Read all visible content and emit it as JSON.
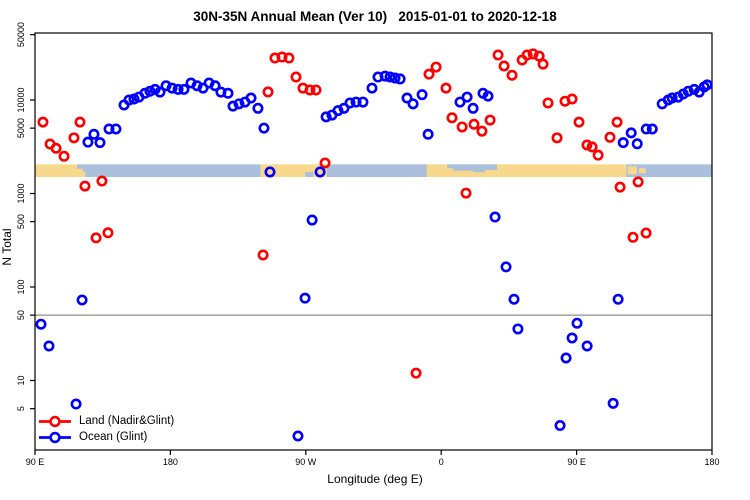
{
  "title": "30N-35N Annual Mean (Ver 10)   2015-01-01 to 2020-12-18",
  "chart_data": {
    "type": "scatter",
    "title": "30N-35N Annual Mean (Ver 10)   2015-01-01 to 2020-12-18",
    "xlabel": "Longitude (deg E)",
    "ylabel": "N Total",
    "x_axis": {
      "range": [
        90,
        540
      ],
      "ticks": [
        90,
        180,
        270,
        360,
        450,
        540
      ],
      "tick_labels": [
        "90 E",
        "180",
        "90 W",
        "0",
        "90 E",
        "180"
      ]
    },
    "y_axis": {
      "scale": "log",
      "range": [
        1.8,
        48000
      ],
      "ticks": [
        50000,
        10000,
        5000,
        1000,
        500,
        100,
        50,
        10,
        5
      ],
      "tick_labels": [
        "50000",
        "10000",
        "5000",
        "1000",
        "500",
        "100",
        "50",
        "10",
        "5"
      ]
    },
    "gridline_y": 50,
    "gridline_color": "#999999",
    "map_band": {
      "n_range": [
        1500,
        2050
      ],
      "ocean_color": "#a9bfdc",
      "land_color": "#f8d88c",
      "segments": [
        {
          "surface": "land",
          "lon": [
            90,
            121.5
          ]
        },
        {
          "surface": "ocean",
          "lon": [
            121.5,
            240
          ]
        },
        {
          "surface": "land",
          "lon": [
            240,
            284
          ]
        },
        {
          "surface": "ocean",
          "lon": [
            284,
            350.5
          ]
        },
        {
          "surface": "land",
          "lon": [
            350.5,
            483
          ]
        },
        {
          "surface": "ocean",
          "lon": [
            483,
            540
          ]
        }
      ],
      "overlays": [
        {
          "surface": "ocean",
          "lon": [
            118,
            121.5
          ],
          "frac": [
            0,
            0.35
          ]
        },
        {
          "surface": "land",
          "lon": [
            121.5,
            123.5
          ],
          "frac": [
            0.55,
            1
          ]
        },
        {
          "surface": "ocean",
          "lon": [
            269.5,
            275
          ],
          "frac": [
            0.6,
            1
          ]
        },
        {
          "surface": "ocean",
          "lon": [
            364,
            368
          ],
          "frac": [
            0,
            0.3
          ]
        },
        {
          "surface": "ocean",
          "lon": [
            368,
            381
          ],
          "frac": [
            0,
            0.5
          ]
        },
        {
          "surface": "ocean",
          "lon": [
            381,
            389
          ],
          "frac": [
            0,
            0.62
          ]
        },
        {
          "surface": "ocean",
          "lon": [
            389,
            397
          ],
          "frac": [
            0,
            0.45
          ]
        },
        {
          "surface": "land",
          "lon": [
            484,
            490
          ],
          "frac": [
            0.15,
            0.8
          ]
        },
        {
          "surface": "land",
          "lon": [
            491.5,
            496
          ],
          "frac": [
            0.3,
            0.7
          ]
        }
      ]
    },
    "series": [
      {
        "name": "Land (Nadir&Glint)",
        "color": "#ff0000",
        "points": [
          [
            95.3,
            5800
          ],
          [
            100,
            3380
          ],
          [
            104,
            3050
          ],
          [
            109.3,
            2500
          ],
          [
            115.9,
            3940
          ],
          [
            119.9,
            5800
          ],
          [
            123.2,
            1200
          ],
          [
            130.6,
            335
          ],
          [
            134.5,
            1360
          ],
          [
            138.5,
            380
          ],
          [
            241.6,
            220
          ],
          [
            244.9,
            12200
          ],
          [
            249.5,
            28100
          ],
          [
            254.2,
            28800
          ],
          [
            258.8,
            28100
          ],
          [
            263.5,
            17600
          ],
          [
            268.1,
            13400
          ],
          [
            272.8,
            12800
          ],
          [
            276.8,
            12800
          ],
          [
            282.8,
            2120
          ],
          [
            343.3,
            12
          ],
          [
            351.9,
            18900
          ],
          [
            356.6,
            22500
          ],
          [
            363.2,
            13400
          ],
          [
            367.2,
            6450
          ],
          [
            373.9,
            5150
          ],
          [
            376.5,
            1010
          ],
          [
            381.8,
            5500
          ],
          [
            387.1,
            4640
          ],
          [
            392.5,
            6100
          ],
          [
            397.8,
            30300
          ],
          [
            401.8,
            23100
          ],
          [
            407.1,
            18400
          ],
          [
            413.8,
            26800
          ],
          [
            417.1,
            30300
          ],
          [
            421.1,
            31100
          ],
          [
            425.1,
            29500
          ],
          [
            427.7,
            24200
          ],
          [
            431,
            9300
          ],
          [
            437,
            3940
          ],
          [
            442.3,
            9700
          ],
          [
            447,
            10250
          ],
          [
            451.6,
            5800
          ],
          [
            456.9,
            3300
          ],
          [
            460.3,
            3150
          ],
          [
            464.3,
            2570
          ],
          [
            472.2,
            3990
          ],
          [
            476.9,
            5800
          ],
          [
            478.9,
            1170
          ],
          [
            487.5,
            340
          ],
          [
            490.9,
            1330
          ],
          [
            496.2,
            378
          ]
        ]
      },
      {
        "name": "Ocean (Glint)",
        "color": "#0000ff",
        "points": [
          [
            94,
            40
          ],
          [
            99.3,
            23.4
          ],
          [
            117.3,
            5.6
          ],
          [
            121.3,
            72.6
          ],
          [
            125.2,
            3540
          ],
          [
            129.2,
            4300
          ],
          [
            133.2,
            3500
          ],
          [
            139.2,
            4900
          ],
          [
            143.8,
            4900
          ],
          [
            149.2,
            8850
          ],
          [
            152.5,
            10000
          ],
          [
            155.8,
            10250
          ],
          [
            159.1,
            10750
          ],
          [
            163.1,
            11800
          ],
          [
            166.4,
            12400
          ],
          [
            169.8,
            13000
          ],
          [
            173.1,
            12150
          ],
          [
            177.1,
            14200
          ],
          [
            181.1,
            13400
          ],
          [
            185.1,
            13000
          ],
          [
            189,
            13000
          ],
          [
            193.7,
            15200
          ],
          [
            197.7,
            14200
          ],
          [
            201.7,
            13400
          ],
          [
            205.7,
            15200
          ],
          [
            209.7,
            14200
          ],
          [
            213.6,
            12150
          ],
          [
            218.3,
            11800
          ],
          [
            221.6,
            8600
          ],
          [
            225.6,
            9100
          ],
          [
            229.6,
            9500
          ],
          [
            233.6,
            10500
          ],
          [
            238.2,
            8150
          ],
          [
            242.2,
            5000
          ],
          [
            246.2,
            1700
          ],
          [
            264.8,
            2.55
          ],
          [
            269.5,
            76
          ],
          [
            274.2,
            520
          ],
          [
            279.5,
            1700
          ],
          [
            283.5,
            6600
          ],
          [
            287.4,
            6900
          ],
          [
            291.4,
            7700
          ],
          [
            295.4,
            8150
          ],
          [
            299.4,
            9300
          ],
          [
            303.4,
            9500
          ],
          [
            308,
            9500
          ],
          [
            314,
            13400
          ],
          [
            318,
            17600
          ],
          [
            322.7,
            18000
          ],
          [
            326,
            17600
          ],
          [
            329.3,
            17200
          ],
          [
            332.7,
            16800
          ],
          [
            337.3,
            10500
          ],
          [
            341.3,
            9100
          ],
          [
            347.3,
            11400
          ],
          [
            351.3,
            4300
          ],
          [
            372.5,
            9500
          ],
          [
            377.2,
            10750
          ],
          [
            381.2,
            8150
          ],
          [
            387.8,
            11800
          ],
          [
            391.1,
            11000
          ],
          [
            395.8,
            560
          ],
          [
            403.1,
            164
          ],
          [
            408.4,
            74
          ],
          [
            411,
            35.6
          ],
          [
            439,
            3.3
          ],
          [
            443,
            17.4
          ],
          [
            447,
            28.5
          ],
          [
            450.3,
            41
          ],
          [
            457,
            23.4
          ],
          [
            474.3,
            5.7
          ],
          [
            477.6,
            74
          ],
          [
            481,
            3500
          ],
          [
            486.3,
            4450
          ],
          [
            490.3,
            3400
          ],
          [
            496.3,
            4900
          ],
          [
            500.3,
            4900
          ],
          [
            506.9,
            9100
          ],
          [
            510.9,
            10000
          ],
          [
            513.5,
            10500
          ],
          [
            517.5,
            10750
          ],
          [
            520.9,
            11600
          ],
          [
            524.2,
            12400
          ],
          [
            528.2,
            13000
          ],
          [
            531.5,
            12150
          ],
          [
            534.8,
            13800
          ],
          [
            536.8,
            14500
          ]
        ]
      }
    ],
    "legend": {
      "position": "bottom-left",
      "items": [
        {
          "label": "Land (Nadir&Glint)",
          "color": "#ff0000"
        },
        {
          "label": "Ocean (Glint)",
          "color": "#0000ff"
        }
      ]
    }
  }
}
